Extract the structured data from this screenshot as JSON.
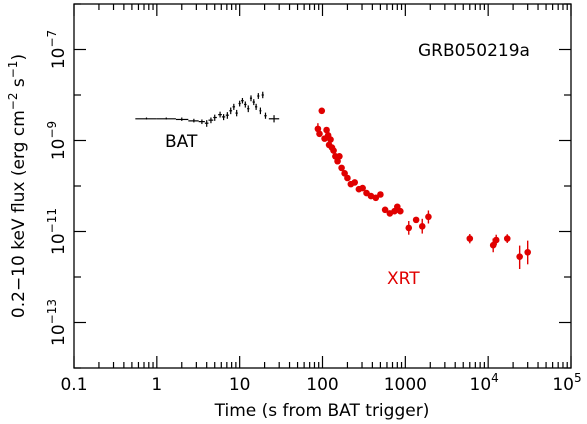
{
  "chart_data": {
    "type": "scatter",
    "xlabel": "Time (s from BAT trigger)",
    "ylabel": {
      "base": "0.2−10 keV flux (erg cm",
      "exp1": "−2",
      "mid": " s",
      "exp2": "−1",
      "end": ")"
    },
    "x_scale": "log",
    "y_scale": "log",
    "xlim": [
      0.1,
      100000
    ],
    "ylim": [
      1e-14,
      1e-06
    ],
    "x_tick_labels": [
      {
        "value": 0.1,
        "text": "0.1"
      },
      {
        "value": 1,
        "text": "1"
      },
      {
        "value": 10,
        "text": "10"
      },
      {
        "value": 100,
        "text": "100"
      },
      {
        "value": 1000,
        "text": "1000"
      },
      {
        "value": 10000,
        "base": "10",
        "exp": "4"
      },
      {
        "value": 100000,
        "base": "10",
        "exp": "5"
      }
    ],
    "y_tick_labels": [
      {
        "value": 1e-07,
        "base": "10",
        "exp": "−7"
      },
      {
        "value": 1e-09,
        "base": "10",
        "exp": "−9"
      },
      {
        "value": 1e-11,
        "base": "10",
        "exp": "−11"
      },
      {
        "value": 1e-13,
        "base": "10",
        "exp": "−13"
      }
    ],
    "annotations": [
      {
        "text": "GRB050219a",
        "color": "#000000"
      },
      {
        "text": "BAT",
        "color": "#000000"
      },
      {
        "text": "XRT",
        "color": "#e00000"
      }
    ],
    "series": [
      {
        "name": "BAT",
        "color": "#000000",
        "marker": "cross",
        "points": [
          {
            "x": 0.75,
            "y": 3e-09,
            "x_lo": 0.55,
            "x_hi": 1.0,
            "y_lo": 2.9e-09,
            "y_hi": 3.2e-09
          },
          {
            "x": 1.3,
            "y": 3e-09,
            "x_lo": 1.0,
            "x_hi": 1.7,
            "y_lo": 2.9e-09,
            "y_hi": 3.2e-09
          },
          {
            "x": 2.0,
            "y": 2.9e-09,
            "x_lo": 1.7,
            "x_hi": 2.4,
            "y_lo": 2.7e-09,
            "y_hi": 3.2e-09
          },
          {
            "x": 2.8,
            "y": 2.7e-09,
            "x_lo": 2.4,
            "x_hi": 3.2,
            "y_lo": 2.5e-09,
            "y_hi": 3e-09
          },
          {
            "x": 3.5,
            "y": 2.6e-09,
            "x_lo": 3.2,
            "x_hi": 3.8,
            "y_lo": 2.3e-09,
            "y_hi": 2.9e-09
          },
          {
            "x": 4.0,
            "y": 2.4e-09,
            "x_lo": 3.8,
            "x_hi": 4.2,
            "y_lo": 2e-09,
            "y_hi": 2.8e-09
          },
          {
            "x": 4.5,
            "y": 2.8e-09,
            "x_lo": 4.2,
            "x_hi": 4.8,
            "y_lo": 2.4e-09,
            "y_hi": 3.2e-09
          },
          {
            "x": 5.0,
            "y": 3.2e-09,
            "x_lo": 4.8,
            "x_hi": 5.3,
            "y_lo": 2.7e-09,
            "y_hi": 3.7e-09
          },
          {
            "x": 5.8,
            "y": 3.7e-09,
            "x_lo": 5.5,
            "x_hi": 6.1,
            "y_lo": 3.2e-09,
            "y_hi": 4.3e-09
          },
          {
            "x": 6.4,
            "y": 3.3e-09,
            "x_lo": 6.1,
            "x_hi": 6.7,
            "y_lo": 2.8e-09,
            "y_hi": 3.8e-09
          },
          {
            "x": 7.1,
            "y": 3.6e-09,
            "x_lo": 6.8,
            "x_hi": 7.4,
            "y_lo": 3e-09,
            "y_hi": 4.2e-09
          },
          {
            "x": 7.8,
            "y": 4.5e-09,
            "x_lo": 7.5,
            "x_hi": 8.1,
            "y_lo": 3.8e-09,
            "y_hi": 5.3e-09
          },
          {
            "x": 8.5,
            "y": 5.5e-09,
            "x_lo": 8.2,
            "x_hi": 8.8,
            "y_lo": 4.7e-09,
            "y_hi": 6.4e-09
          },
          {
            "x": 9.2,
            "y": 4e-09,
            "x_lo": 8.9,
            "x_hi": 9.5,
            "y_lo": 3.4e-09,
            "y_hi": 4.7e-09
          },
          {
            "x": 10.0,
            "y": 6.5e-09,
            "x_lo": 9.7,
            "x_hi": 10.3,
            "y_lo": 5.6e-09,
            "y_hi": 7.5e-09
          },
          {
            "x": 10.8,
            "y": 7.5e-09,
            "x_lo": 10.4,
            "x_hi": 11.2,
            "y_lo": 6.5e-09,
            "y_hi": 8.6e-09
          },
          {
            "x": 11.7,
            "y": 6.2e-09,
            "x_lo": 11.3,
            "x_hi": 12.1,
            "y_lo": 5.3e-09,
            "y_hi": 7.2e-09
          },
          {
            "x": 12.7,
            "y": 5e-09,
            "x_lo": 12.3,
            "x_hi": 13.1,
            "y_lo": 4.2e-09,
            "y_hi": 5.9e-09
          },
          {
            "x": 13.7,
            "y": 8.5e-09,
            "x_lo": 13.3,
            "x_hi": 14.1,
            "y_lo": 7.3e-09,
            "y_hi": 9.8e-09
          },
          {
            "x": 14.8,
            "y": 7e-09,
            "x_lo": 14.3,
            "x_hi": 15.3,
            "y_lo": 6e-09,
            "y_hi": 8.1e-09
          },
          {
            "x": 15.8,
            "y": 5.5e-09,
            "x_lo": 15.3,
            "x_hi": 16.3,
            "y_lo": 4.7e-09,
            "y_hi": 6.4e-09
          },
          {
            "x": 16.8,
            "y": 9.5e-09,
            "x_lo": 16.3,
            "x_hi": 17.3,
            "y_lo": 8.2e-09,
            "y_hi": 1.1e-08
          },
          {
            "x": 17.8,
            "y": 4.5e-09,
            "x_lo": 17.3,
            "x_hi": 18.3,
            "y_lo": 3.8e-09,
            "y_hi": 5.3e-09
          },
          {
            "x": 19.0,
            "y": 1e-08,
            "x_lo": 18.4,
            "x_hi": 19.6,
            "y_lo": 8.5e-09,
            "y_hi": 1.18e-08
          },
          {
            "x": 20.5,
            "y": 3.5e-09,
            "x_lo": 19.8,
            "x_hi": 21.2,
            "y_lo": 3e-09,
            "y_hi": 4.1e-09
          },
          {
            "x": 26.0,
            "y": 3e-09,
            "x_lo": 22.5,
            "x_hi": 30.0,
            "y_lo": 2.5e-09,
            "y_hi": 3.6e-09
          }
        ]
      },
      {
        "name": "XRT",
        "color": "#e00000",
        "marker": "circle",
        "points": [
          {
            "x": 88,
            "y": 1.8e-09,
            "y_lo": 1.3e-09,
            "y_hi": 2.4e-09
          },
          {
            "x": 92,
            "y": 1.4e-09
          },
          {
            "x": 98,
            "y": 4.5e-09
          },
          {
            "x": 106,
            "y": 1.1e-09
          },
          {
            "x": 112,
            "y": 1.7e-09
          },
          {
            "x": 117,
            "y": 1.3e-09
          },
          {
            "x": 120,
            "y": 8e-10
          },
          {
            "x": 125,
            "y": 1.05e-09
          },
          {
            "x": 130,
            "y": 7e-10
          },
          {
            "x": 136,
            "y": 6e-10
          },
          {
            "x": 143,
            "y": 4.5e-10
          },
          {
            "x": 152,
            "y": 3.5e-10
          },
          {
            "x": 160,
            "y": 4.5e-10
          },
          {
            "x": 170,
            "y": 2.5e-10
          },
          {
            "x": 185,
            "y": 1.9e-10
          },
          {
            "x": 200,
            "y": 1.5e-10
          },
          {
            "x": 220,
            "y": 1.1e-10
          },
          {
            "x": 245,
            "y": 1.2e-10
          },
          {
            "x": 275,
            "y": 8.5e-11
          },
          {
            "x": 305,
            "y": 9e-11
          },
          {
            "x": 340,
            "y": 7e-11
          },
          {
            "x": 385,
            "y": 6e-11
          },
          {
            "x": 440,
            "y": 5.5e-11
          },
          {
            "x": 500,
            "y": 6.5e-11
          },
          {
            "x": 570,
            "y": 3e-11
          },
          {
            "x": 650,
            "y": 2.5e-11
          },
          {
            "x": 740,
            "y": 2.8e-11
          },
          {
            "x": 800,
            "y": 3.5e-11
          },
          {
            "x": 870,
            "y": 2.8e-11
          },
          {
            "x": 1100,
            "y": 1.2e-11,
            "y_lo": 8.5e-12,
            "y_hi": 1.7e-11
          },
          {
            "x": 1350,
            "y": 1.8e-11
          },
          {
            "x": 1600,
            "y": 1.3e-11,
            "y_lo": 9e-12,
            "y_hi": 1.9e-11
          },
          {
            "x": 1900,
            "y": 2.1e-11,
            "y_lo": 1.5e-11,
            "y_hi": 2.9e-11
          },
          {
            "x": 6000,
            "y": 7e-12,
            "y_lo": 5.5e-12,
            "y_hi": 8.8e-12
          },
          {
            "x": 11500,
            "y": 5e-12,
            "y_lo": 3.5e-12,
            "y_hi": 7e-12
          },
          {
            "x": 12500,
            "y": 6.5e-12,
            "y_lo": 5e-12,
            "y_hi": 8.5e-12
          },
          {
            "x": 17000,
            "y": 7e-12,
            "y_lo": 5.6e-12,
            "y_hi": 8.7e-12
          },
          {
            "x": 24000,
            "y": 2.8e-12,
            "y_lo": 1.5e-12,
            "y_hi": 4.9e-12
          },
          {
            "x": 30000,
            "y": 3.5e-12,
            "y_lo": 1.9e-12,
            "y_hi": 6.3e-12
          }
        ]
      }
    ]
  }
}
